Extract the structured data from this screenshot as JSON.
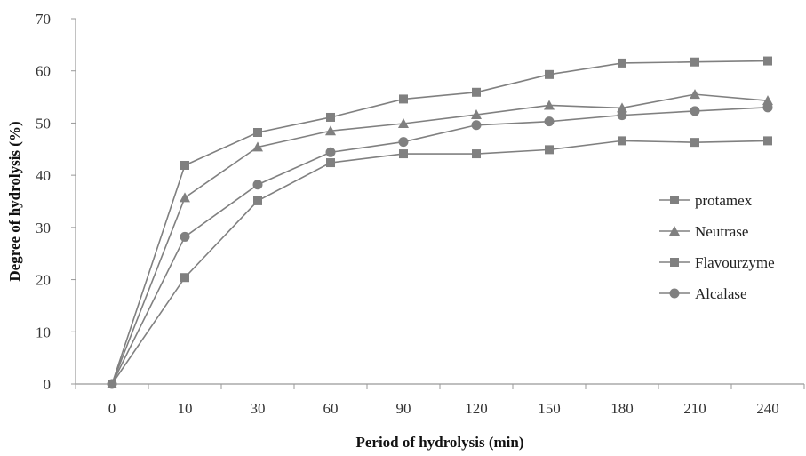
{
  "chart_data": {
    "type": "line",
    "xlabel": "Period of hydrolysis  (min)",
    "ylabel": "Degree of hydrolysis  (%)",
    "categories": [
      "0",
      "10",
      "30",
      "60",
      "90",
      "120",
      "150",
      "180",
      "210",
      "240"
    ],
    "ylim": [
      0,
      70
    ],
    "yticks": [
      0,
      10,
      20,
      30,
      40,
      50,
      60,
      70
    ],
    "grid": false,
    "legend_position": "right",
    "line_color": "#808080",
    "series": [
      {
        "name": "protamex",
        "marker": "square",
        "values": [
          0,
          41.9,
          48.2,
          51.1,
          54.6,
          55.9,
          59.3,
          61.5,
          61.7,
          61.9
        ]
      },
      {
        "name": "Neutrase",
        "marker": "triangle",
        "values": [
          0,
          35.7,
          45.4,
          48.5,
          49.9,
          51.6,
          53.4,
          52.9,
          55.5,
          54.3
        ]
      },
      {
        "name": "Flavourzyme",
        "marker": "square",
        "values": [
          0,
          20.4,
          35.1,
          42.4,
          44.1,
          44.1,
          44.9,
          46.6,
          46.3,
          46.6
        ]
      },
      {
        "name": "Alcalase",
        "marker": "circle",
        "values": [
          0,
          28.2,
          38.2,
          44.4,
          46.4,
          49.6,
          50.3,
          51.5,
          52.3,
          53.0
        ]
      }
    ]
  }
}
